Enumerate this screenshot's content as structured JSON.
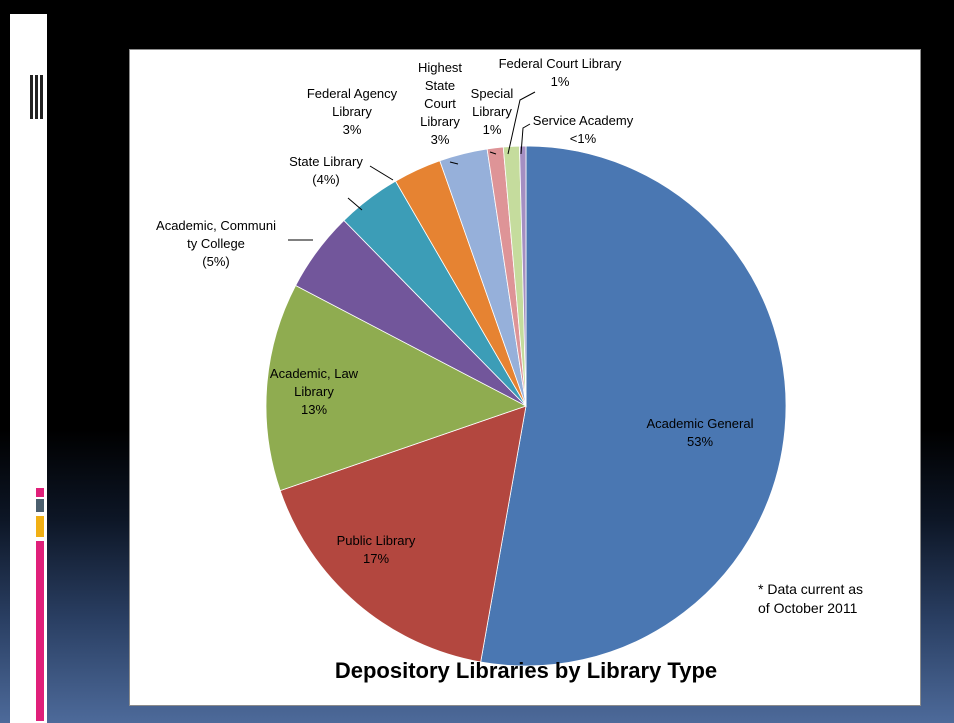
{
  "chart_data": {
    "type": "pie",
    "title": "Depository Libraries by Library Type",
    "annotation": "* Data current as\nof October 2011",
    "start_angle_deg": 0,
    "direction": "clockwise",
    "slices": [
      {
        "name": "Academic General",
        "value": 53,
        "label": "Academic General\n53%",
        "color": "#4a77b2"
      },
      {
        "name": "Public Library",
        "value": 17,
        "label": "Public Library\n17%",
        "color": "#b3473f"
      },
      {
        "name": "Academic, Law Library",
        "value": 13,
        "label": "Academic, Law\nLibrary\n13%",
        "color": "#8fac50"
      },
      {
        "name": "Academic, Community College",
        "value": 5,
        "label": "Academic, Communi\nty College\n(5%)",
        "color": "#72569b"
      },
      {
        "name": "State Library",
        "value": 4,
        "label": "State Library\n(4%)",
        "color": "#3c9db7"
      },
      {
        "name": "Federal Agency Library",
        "value": 3,
        "label": "Federal Agency\nLibrary\n3%",
        "color": "#e68332"
      },
      {
        "name": "Highest State Court Library",
        "value": 3,
        "label": "Highest\nState\nCourt\nLibrary\n3%",
        "color": "#96b0da"
      },
      {
        "name": "Special Library",
        "value": 1,
        "label": "Special\nLibrary\n1%",
        "color": "#de9497"
      },
      {
        "name": "Federal Court Library",
        "value": 1,
        "label": "Federal Court Library\n1%",
        "color": "#c5dc9d"
      },
      {
        "name": "Service Academy",
        "value": 0.4,
        "label": "Service Academy\n<1%",
        "color": "#a58fc2"
      }
    ]
  }
}
